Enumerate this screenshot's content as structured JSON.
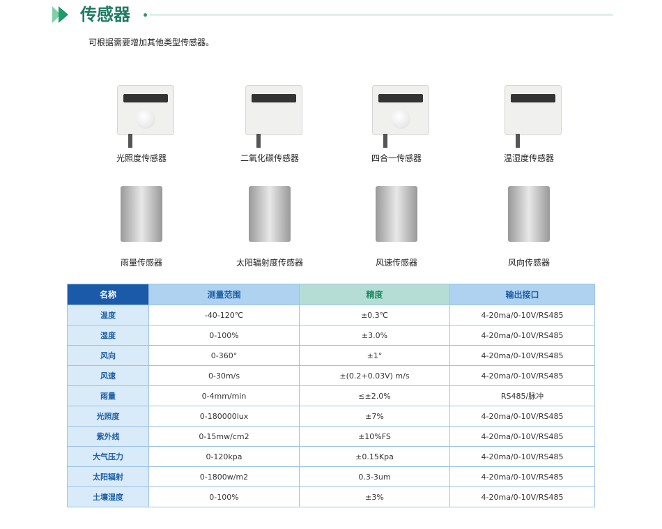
{
  "header": {
    "title": "传感器",
    "subtitle": "可根据需要增加其他类型传感器。"
  },
  "products": [
    {
      "label": "光照度传感器"
    },
    {
      "label": "二氧化碳传感器"
    },
    {
      "label": "四合一传感器"
    },
    {
      "label": "温湿度传感器"
    },
    {
      "label": "雨量传感器"
    },
    {
      "label": "太阳辐射度传感器"
    },
    {
      "label": "风速传感器"
    },
    {
      "label": "风向传感器"
    }
  ],
  "table": {
    "headers": [
      "名称",
      "测量范围",
      "精度",
      "输出接口"
    ],
    "rows": [
      [
        "温度",
        "-40-120℃",
        "±0.3℃",
        "4-20ma/0-10V/RS485"
      ],
      [
        "湿度",
        "0-100%",
        "±3.0%",
        "4-20ma/0-10V/RS485"
      ],
      [
        "风向",
        "0-360°",
        "±1°",
        "4-20ma/0-10V/RS485"
      ],
      [
        "风速",
        "0-30m/s",
        "±(0.2+0.03V) m/s",
        "4-20ma/0-10V/RS485"
      ],
      [
        "雨量",
        "0-4mm/min",
        "≤±2.0%",
        "RS485/脉冲"
      ],
      [
        "光照度",
        "0-180000lux",
        "±7%",
        "4-20ma/0-10V/RS485"
      ],
      [
        "紫外线",
        "0-15mw/cm2",
        "±10%FS",
        "4-20ma/0-10V/RS485"
      ],
      [
        "大气压力",
        "0-120kpa",
        "±0.15Kpa",
        "4-20ma/0-10V/RS485"
      ],
      [
        "太阳辐射",
        "0-1800w/m2",
        "0.3-3um",
        "4-20ma/0-10V/RS485"
      ],
      [
        "土壤湿度",
        "0-100%",
        "±3%",
        "4-20ma/0-10V/RS485"
      ]
    ]
  }
}
